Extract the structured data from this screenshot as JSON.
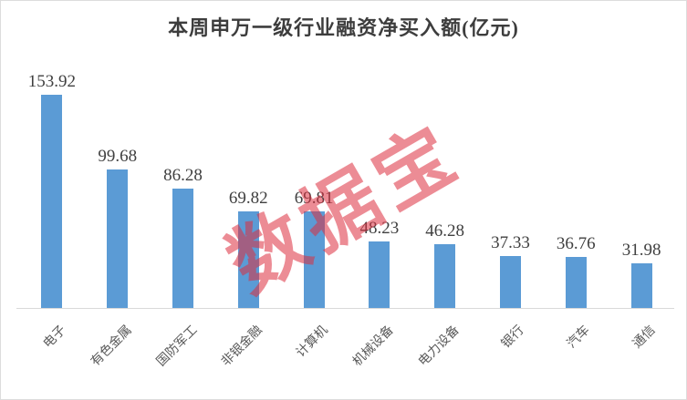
{
  "chart_data": {
    "type": "bar",
    "title": "本周申万一级行业融资净买入额(亿元)",
    "categories": [
      "电子",
      "有色金属",
      "国防军工",
      "非银金融",
      "计算机",
      "机械设备",
      "电力设备",
      "银行",
      "汽车",
      "通信"
    ],
    "values": [
      153.92,
      99.68,
      86.28,
      69.82,
      69.81,
      48.23,
      46.28,
      37.33,
      36.76,
      31.98
    ],
    "value_labels": [
      "153.92",
      "99.68",
      "86.28",
      "69.82",
      "69.81",
      "48.23",
      "46.28",
      "37.33",
      "36.76",
      "31.98"
    ],
    "xlabel": "",
    "ylabel": "",
    "ylim": [
      0,
      160
    ],
    "grid": false,
    "legend": null,
    "data_labels_shown": true,
    "bar_color": "#5b9bd5",
    "value_label_color": "#404040",
    "category_label_color": "#595959",
    "axis_line_color": "#d9d9d9"
  },
  "watermark": {
    "text": "数据宝",
    "color": "rgba(220,45,62,0.55)"
  }
}
